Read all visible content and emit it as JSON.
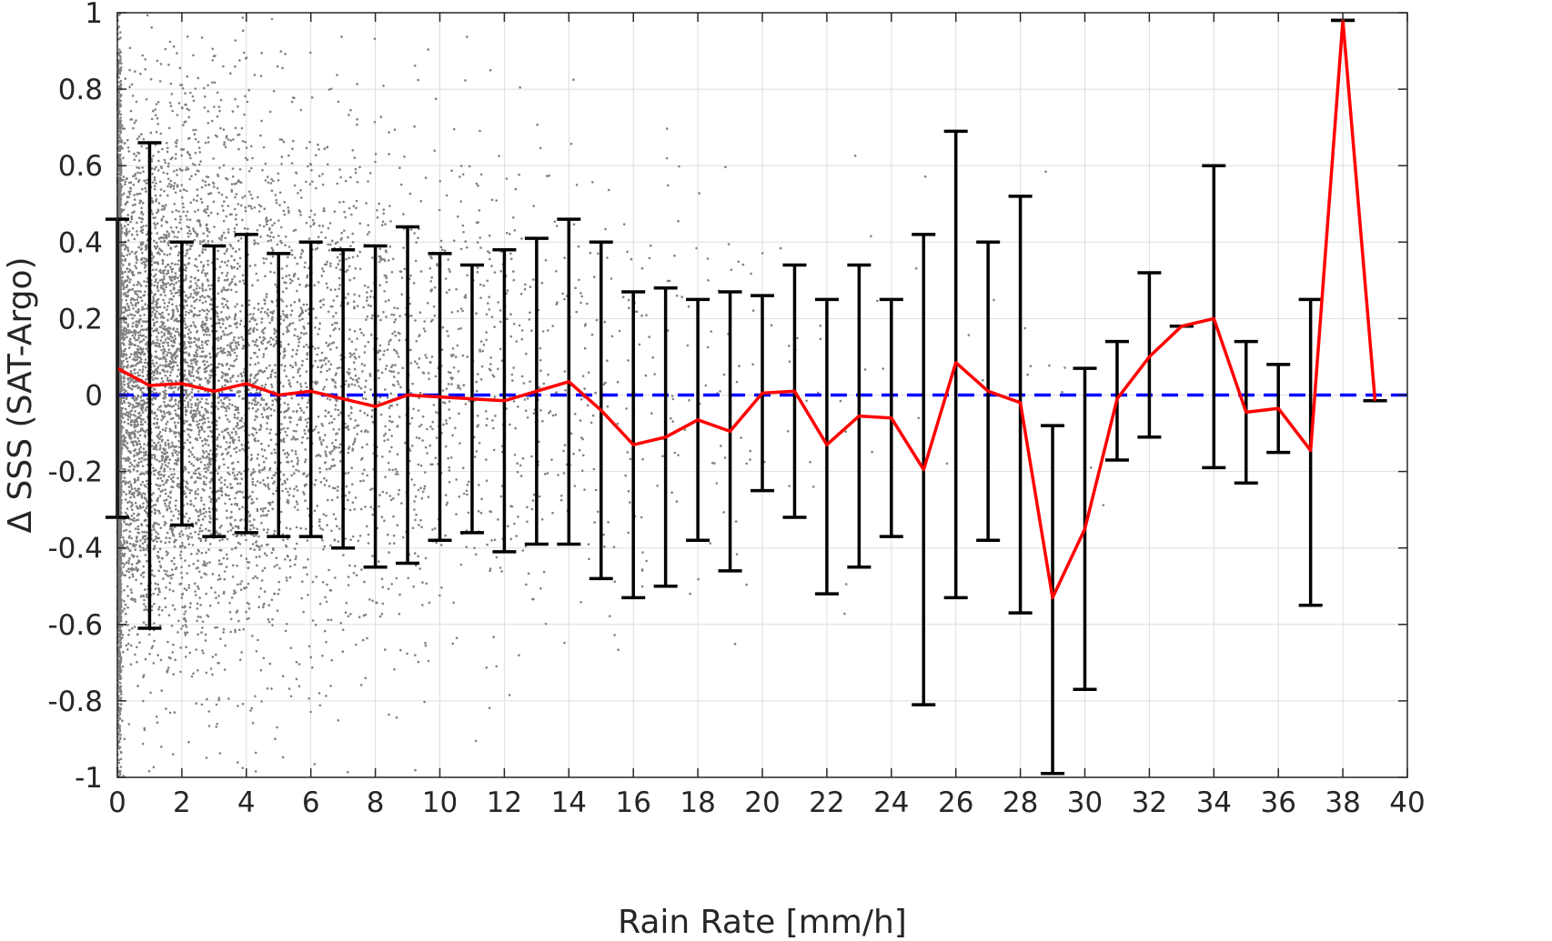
{
  "chart_data": {
    "type": "scatter",
    "xlabel": "Rain Rate [mm/h]",
    "ylabel": "Δ SSS (SAT-Argo)",
    "xlim": [
      0,
      40
    ],
    "ylim": [
      -1,
      1
    ],
    "xticks": [
      0,
      2,
      4,
      6,
      8,
      10,
      12,
      14,
      16,
      18,
      20,
      22,
      24,
      26,
      28,
      30,
      32,
      34,
      36,
      38,
      40
    ],
    "yticks": [
      -1,
      -0.8,
      -0.6,
      -0.4,
      -0.2,
      0,
      0.2,
      0.4,
      0.6,
      0.8,
      1
    ],
    "xtick_labels": [
      "0",
      "2",
      "4",
      "6",
      "8",
      "10",
      "12",
      "14",
      "16",
      "18",
      "20",
      "22",
      "24",
      "26",
      "28",
      "30",
      "32",
      "34",
      "36",
      "38",
      "40"
    ],
    "ytick_labels": [
      "-1",
      "-0.8",
      "-0.6",
      "-0.4",
      "-0.2",
      "0",
      "0.2",
      "0.4",
      "0.6",
      "0.8",
      "1"
    ],
    "grid": true,
    "reference_line": {
      "y": 0,
      "color": "#0000ff",
      "style": "dashed"
    },
    "scatter_color": "#808080",
    "mean_line_color": "#ff0000",
    "errorbar_color": "#000000",
    "mean_series": {
      "x": [
        0,
        1,
        2,
        3,
        4,
        5,
        6,
        7,
        8,
        9,
        10,
        11,
        12,
        13,
        14,
        15,
        16,
        17,
        18,
        19,
        20,
        21,
        22,
        23,
        24,
        25,
        26,
        27,
        28,
        29,
        30,
        31,
        32,
        33,
        34,
        35,
        36,
        37,
        38,
        39
      ],
      "y": [
        0.07,
        0.025,
        0.03,
        0.01,
        0.03,
        0.0,
        0.01,
        -0.01,
        -0.03,
        0.0,
        -0.005,
        -0.01,
        -0.015,
        0.01,
        0.035,
        -0.04,
        -0.13,
        -0.11,
        -0.065,
        -0.095,
        0.005,
        0.01,
        -0.13,
        -0.055,
        -0.06,
        -0.195,
        0.085,
        0.01,
        -0.02,
        -0.53,
        -0.35,
        -0.01,
        0.1,
        0.18,
        0.2,
        -0.045,
        -0.035,
        -0.145,
        0.98,
        -0.015
      ]
    },
    "error_bars": {
      "x": [
        0,
        1,
        2,
        3,
        4,
        5,
        6,
        7,
        8,
        9,
        10,
        11,
        12,
        13,
        14,
        15,
        16,
        17,
        18,
        19,
        20,
        21,
        22,
        23,
        24,
        25,
        26,
        27,
        28,
        29,
        30,
        31,
        32,
        33,
        34,
        35,
        36,
        37,
        38,
        39
      ],
      "upper": [
        0.46,
        0.66,
        0.4,
        0.39,
        0.42,
        0.37,
        0.4,
        0.38,
        0.39,
        0.44,
        0.37,
        0.34,
        0.38,
        0.41,
        0.46,
        0.4,
        0.27,
        0.28,
        0.25,
        0.27,
        0.26,
        0.34,
        0.25,
        0.34,
        0.25,
        0.42,
        0.69,
        0.4,
        0.52,
        -0.08,
        0.07,
        0.14,
        0.32,
        0.18,
        0.6,
        0.14,
        0.08,
        0.25,
        0.98,
        -0.015
      ],
      "lower": [
        -0.32,
        -0.61,
        -0.34,
        -0.37,
        -0.36,
        -0.37,
        -0.37,
        -0.4,
        -0.45,
        -0.44,
        -0.38,
        -0.36,
        -0.41,
        -0.39,
        -0.39,
        -0.48,
        -0.53,
        -0.5,
        -0.38,
        -0.46,
        -0.25,
        -0.32,
        -0.52,
        -0.45,
        -0.37,
        -0.81,
        -0.53,
        -0.38,
        -0.57,
        -0.99,
        -0.77,
        -0.17,
        -0.11,
        0.18,
        -0.19,
        -0.23,
        -0.15,
        -0.55,
        0.98,
        -0.015
      ]
    }
  }
}
